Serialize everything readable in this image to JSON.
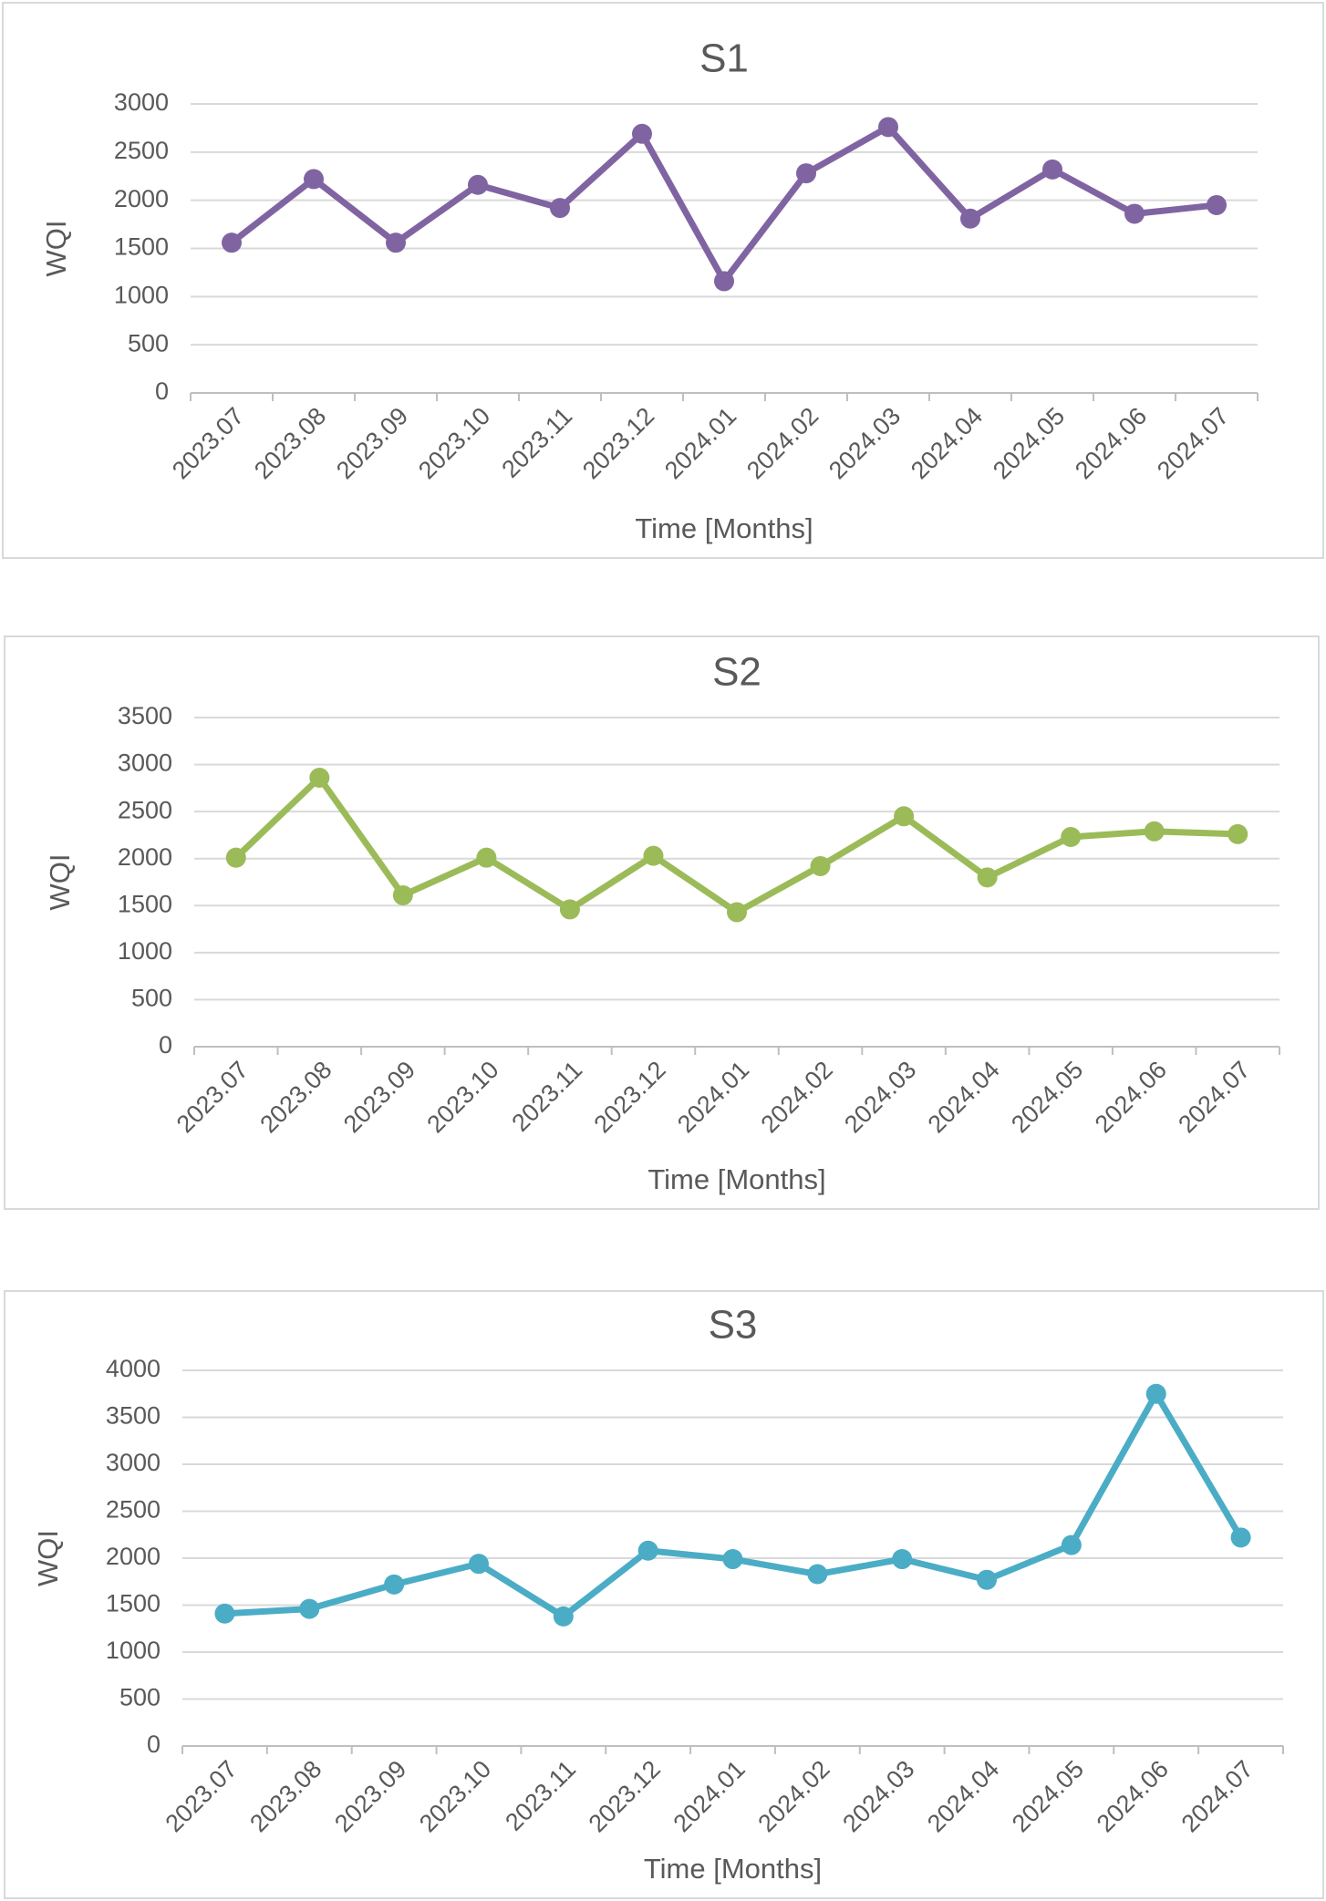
{
  "chart_data": [
    {
      "type": "line",
      "title": "S1",
      "x_label": "Time [Months]",
      "y_label": "WQI",
      "categories": [
        "2023.07",
        "2023.08",
        "2023.09",
        "2023.10",
        "2023.11",
        "2023.12",
        "2024.01",
        "2024.02",
        "2024.03",
        "2024.04",
        "2024.05",
        "2024.06",
        "2024.07"
      ],
      "series": [
        {
          "name": "S1",
          "color": "#8064a2",
          "values": [
            1560,
            2220,
            1560,
            2160,
            1920,
            2690,
            1160,
            2280,
            2760,
            1810,
            2320,
            1860,
            1950
          ]
        }
      ],
      "ylim": [
        0,
        3000
      ],
      "yticks": [
        0,
        500,
        1000,
        1500,
        2000,
        2500,
        3000
      ],
      "grid": true
    },
    {
      "type": "line",
      "title": "S2",
      "x_label": "Time [Months]",
      "y_label": "WQI",
      "categories": [
        "2023.07",
        "2023.08",
        "2023.09",
        "2023.10",
        "2023.11",
        "2023.12",
        "2024.01",
        "2024.02",
        "2024.03",
        "2024.04",
        "2024.05",
        "2024.06",
        "2024.07"
      ],
      "series": [
        {
          "name": "S2",
          "color": "#9bbb59",
          "values": [
            2010,
            2860,
            1610,
            2010,
            1460,
            2030,
            1430,
            1920,
            2450,
            1800,
            2230,
            2290,
            2260
          ]
        }
      ],
      "ylim": [
        0,
        3500
      ],
      "yticks": [
        0,
        500,
        1000,
        1500,
        2000,
        2500,
        3000,
        3500
      ],
      "grid": true
    },
    {
      "type": "line",
      "title": "S3",
      "x_label": "Time [Months]",
      "y_label": "WQI",
      "categories": [
        "2023.07",
        "2023.08",
        "2023.09",
        "2023.10",
        "2023.11",
        "2023.12",
        "2024.01",
        "2024.02",
        "2024.03",
        "2024.04",
        "2024.05",
        "2024.06",
        "2024.07"
      ],
      "series": [
        {
          "name": "S3",
          "color": "#4bacc6",
          "values": [
            1410,
            1460,
            1720,
            1940,
            1380,
            2080,
            1990,
            1830,
            1990,
            1770,
            2140,
            3750,
            2220
          ]
        }
      ],
      "ylim": [
        0,
        4000
      ],
      "yticks": [
        0,
        500,
        1000,
        1500,
        2000,
        2500,
        3000,
        3500,
        4000
      ],
      "grid": true
    }
  ]
}
